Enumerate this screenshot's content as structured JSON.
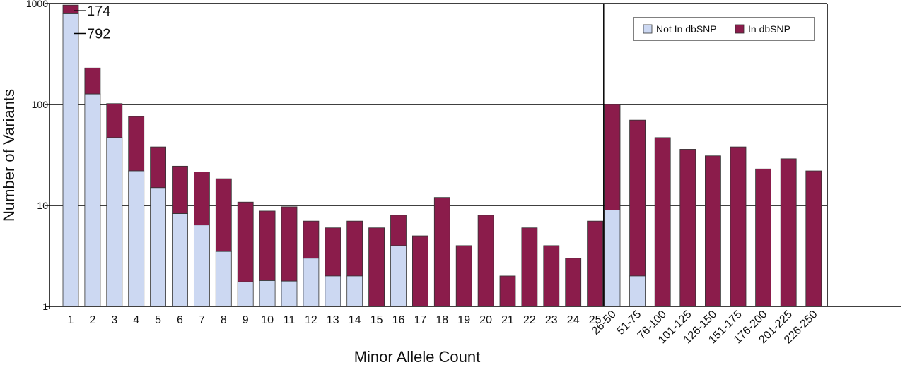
{
  "chart_data": {
    "type": "bar",
    "stacked": true,
    "yscale": "log",
    "ylim": [
      1,
      1000
    ],
    "yticks": [
      "1",
      "10",
      "100",
      "1000"
    ],
    "ylabel": "Number of Variants",
    "xlabel": "Minor Allele Count",
    "grid": "horizontal at decades",
    "legend_position": "top-right",
    "colors": {
      "not_in": "#ccd8f2",
      "in": "#8b1c4b"
    },
    "categories": [
      "1",
      "2",
      "3",
      "4",
      "5",
      "6",
      "7",
      "8",
      "9",
      "10",
      "11",
      "12",
      "13",
      "14",
      "15",
      "16",
      "17",
      "18",
      "19",
      "20",
      "21",
      "22",
      "23",
      "24",
      "25",
      "26-50",
      "51-75",
      "76-100",
      "101-125",
      "126-150",
      "151-175",
      "176-200",
      "201-225",
      "226-250"
    ],
    "series": [
      {
        "name": "Not In dbSNP",
        "color": "#ccd8f2",
        "values": [
          792,
          127,
          47,
          22,
          15,
          8.3,
          6.4,
          3.5,
          1.75,
          1.8,
          1.78,
          3,
          2,
          2,
          0,
          4,
          0,
          0,
          0,
          0,
          0,
          0,
          0,
          0,
          0,
          9,
          2,
          0,
          0,
          0,
          0,
          0,
          0,
          0
        ]
      },
      {
        "name": "In dbSNP",
        "color": "#8b1c4b",
        "values": [
          174,
          103,
          55,
          54,
          23,
          16.2,
          15.1,
          14.9,
          9.05,
          7,
          7.92,
          4,
          4,
          5,
          6,
          4,
          5,
          12,
          4,
          8,
          2,
          6,
          4,
          3,
          7,
          91,
          68,
          47,
          36,
          31,
          38,
          23,
          29,
          22
        ]
      }
    ],
    "annotations": [
      {
        "text": "174",
        "category": "1"
      },
      {
        "text": "792",
        "category": "1"
      }
    ],
    "group_separator_after": "25"
  }
}
